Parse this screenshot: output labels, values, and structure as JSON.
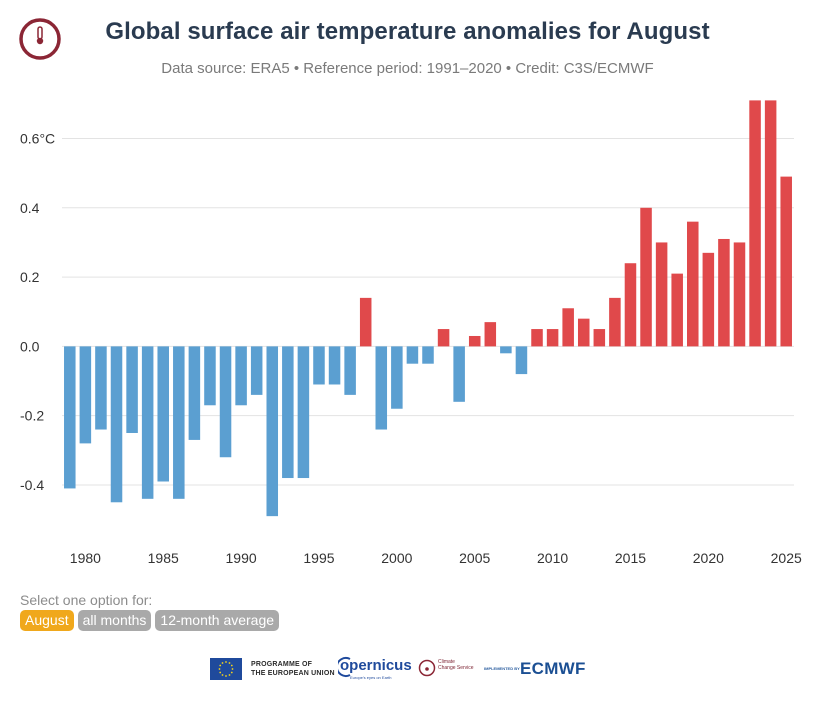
{
  "header": {
    "title": "Global surface air temperature anomalies for August",
    "subtitle": "Data source: ERA5 • Reference period: 1991–2020 • Credit: C3S/ECMWF"
  },
  "selector": {
    "label": "Select one option for:",
    "options": [
      "August",
      "all months",
      "12-month average"
    ],
    "selected": "August",
    "selected_color": "#f0a81c",
    "inactive_color": "#a9a9a9"
  },
  "footer": {
    "eu_line1": "PROGRAMME OF",
    "eu_line2": "THE EUROPEAN UNION",
    "copernicus": "opernicus",
    "copernicus_sub": "Europe's eyes on Earth",
    "c3s_line1": "Climate",
    "c3s_line2": "Change Service",
    "implemented_by": "IMPLEMENTED BY",
    "ecmwf": "ECMWF"
  },
  "chart_data": {
    "type": "bar",
    "x": [
      1979,
      1980,
      1981,
      1982,
      1983,
      1984,
      1985,
      1986,
      1987,
      1988,
      1989,
      1990,
      1991,
      1992,
      1993,
      1994,
      1995,
      1996,
      1997,
      1998,
      1999,
      2000,
      2001,
      2002,
      2003,
      2004,
      2005,
      2006,
      2007,
      2008,
      2009,
      2010,
      2011,
      2012,
      2013,
      2014,
      2015,
      2016,
      2017,
      2018,
      2019,
      2020,
      2021,
      2022,
      2023,
      2024,
      2025
    ],
    "values": [
      -0.41,
      -0.28,
      -0.24,
      -0.45,
      -0.25,
      -0.44,
      -0.39,
      -0.44,
      -0.27,
      -0.17,
      -0.32,
      -0.17,
      -0.14,
      -0.49,
      -0.38,
      -0.38,
      -0.11,
      -0.11,
      -0.14,
      0.14,
      -0.24,
      -0.18,
      -0.05,
      -0.05,
      0.05,
      -0.16,
      0.03,
      0.07,
      -0.02,
      -0.08,
      0.05,
      0.05,
      0.11,
      0.08,
      0.05,
      0.14,
      0.24,
      0.4,
      0.3,
      0.21,
      0.36,
      0.27,
      0.31,
      0.3,
      0.71,
      0.71,
      0.49
    ],
    "negative_color": "#5b9fd1",
    "positive_color": "#e0494b",
    "ylim": [
      -0.53,
      0.74
    ],
    "yticks": [
      -0.4,
      -0.2,
      0.0,
      0.2,
      0.4,
      0.6
    ],
    "ytick_labels": [
      "-0.4",
      "-0.2",
      "0.0",
      "0.2",
      "0.4",
      "0.6°C"
    ],
    "xticks": [
      1980,
      1985,
      1990,
      1995,
      2000,
      2005,
      2010,
      2015,
      2020,
      2025
    ],
    "xtick_labels": [
      "1980",
      "1985",
      "1990",
      "1995",
      "2000",
      "2005",
      "2010",
      "2015",
      "2020",
      "2025"
    ],
    "grid": true
  }
}
